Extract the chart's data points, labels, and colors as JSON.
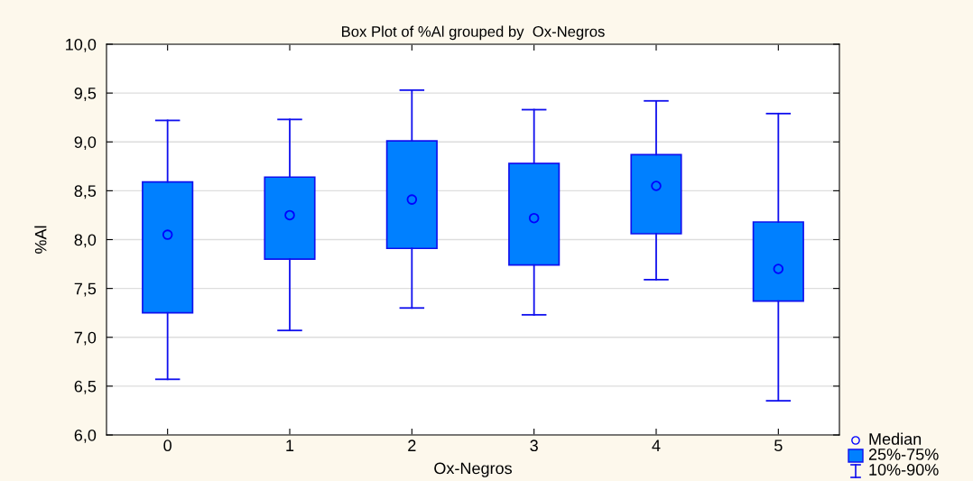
{
  "chart_data": {
    "type": "box",
    "title": "Box Plot of %Al grouped by  Ox-Negros",
    "xlabel": "Ox-Negros",
    "ylabel": "%Al",
    "categories": [
      "0",
      "1",
      "2",
      "3",
      "4",
      "5"
    ],
    "boxes": [
      {
        "low": 6.57,
        "q1": 7.25,
        "median": 8.05,
        "q3": 8.59,
        "high": 9.22
      },
      {
        "low": 7.07,
        "q1": 7.8,
        "median": 8.25,
        "q3": 8.64,
        "high": 9.23
      },
      {
        "low": 7.3,
        "q1": 7.91,
        "median": 8.41,
        "q3": 9.01,
        "high": 9.53
      },
      {
        "low": 7.23,
        "q1": 7.74,
        "median": 8.22,
        "q3": 8.78,
        "high": 9.33
      },
      {
        "low": 7.59,
        "q1": 8.06,
        "median": 8.55,
        "q3": 8.87,
        "high": 9.42
      },
      {
        "low": 6.35,
        "q1": 7.37,
        "median": 7.7,
        "q3": 8.18,
        "high": 9.29
      }
    ],
    "color": "#0080ff",
    "ylim": [
      6,
      10
    ],
    "yticks": [
      {
        "value": 6,
        "label": "6,0"
      },
      {
        "value": 6.5,
        "label": "6,5"
      },
      {
        "value": 7,
        "label": "7,0"
      },
      {
        "value": 7.5,
        "label": "7,5"
      },
      {
        "value": 8,
        "label": "8,0"
      },
      {
        "value": 8.5,
        "label": "8,5"
      },
      {
        "value": 9,
        "label": "9,0"
      },
      {
        "value": 9.5,
        "label": "9,5"
      },
      {
        "value": 10,
        "label": "10,0"
      }
    ],
    "grid": "y",
    "annotations": [
      "Median",
      "25%-75%",
      "10%-90%"
    ]
  }
}
